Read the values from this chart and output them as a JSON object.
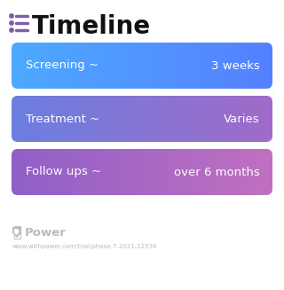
{
  "title": "Timeline",
  "title_fontsize": 20,
  "title_color": "#111111",
  "title_icon_color": "#7B5EA7",
  "background_color": "#ffffff",
  "rows": [
    {
      "left_text": "Screening ~",
      "right_text": "3 weeks",
      "color_left": "#4DAAFF",
      "color_right": "#5580FF"
    },
    {
      "left_text": "Treatment ~",
      "right_text": "Varies",
      "color_left": "#6B7FE0",
      "color_right": "#A06BC8"
    },
    {
      "left_text": "Follow ups ~",
      "right_text": "over 6 months",
      "color_left": "#9060C8",
      "color_right": "#C070C0"
    }
  ],
  "footer_logo_text": "Power",
  "footer_url": "www.withpower.com/trial/phase-7-2021-12536",
  "footer_color": "#bbbbbb"
}
